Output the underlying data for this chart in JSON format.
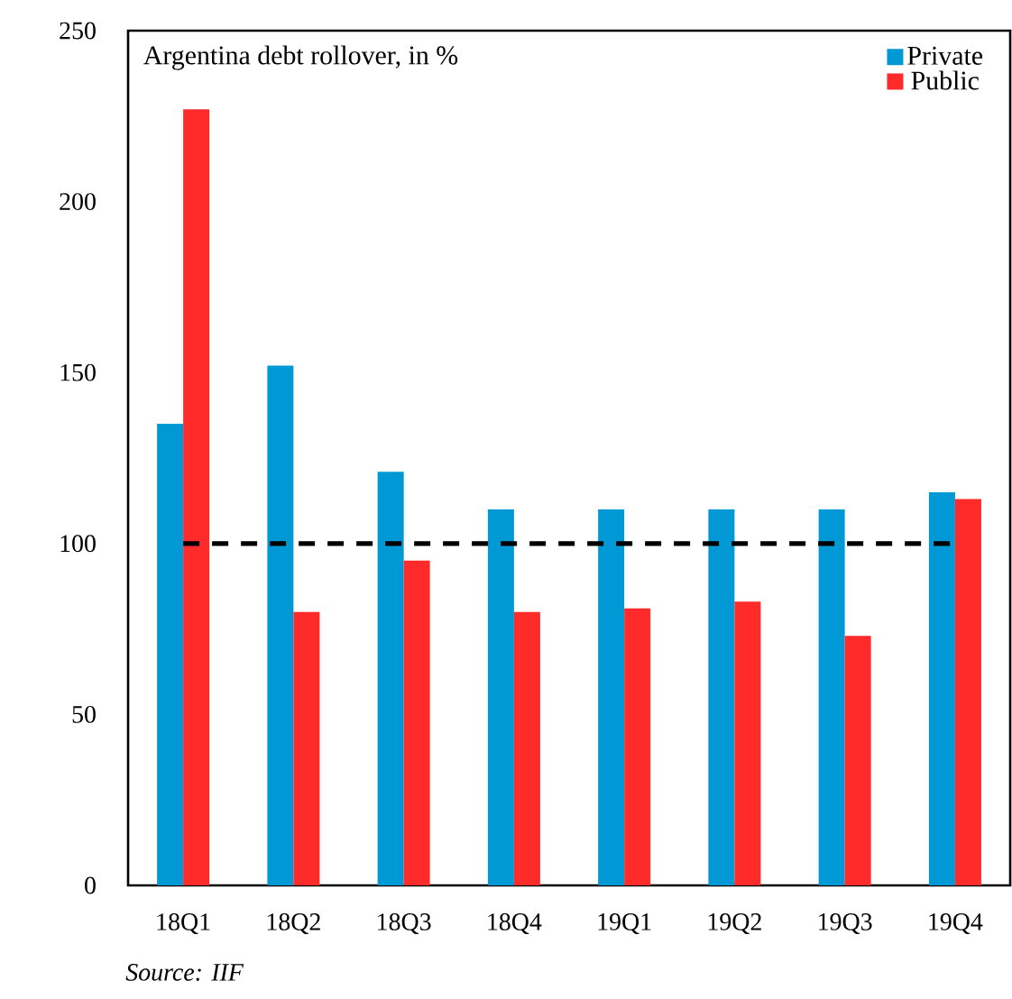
{
  "chart_data": {
    "type": "bar",
    "title": "Argentina debt rollover, in %",
    "categories": [
      "18Q1",
      "18Q2",
      "18Q3",
      "18Q4",
      "19Q1",
      "19Q2",
      "19Q3",
      "19Q4"
    ],
    "series": [
      {
        "name": "Private",
        "color": "#0099d6",
        "values": [
          135,
          152,
          121,
          110,
          110,
          110,
          110,
          115
        ]
      },
      {
        "name": "Public",
        "color": "#ff2a2a",
        "values": [
          227,
          80,
          95,
          80,
          81,
          83,
          73,
          113
        ]
      }
    ],
    "ylim": [
      0,
      250
    ],
    "yticks": [
      0,
      50,
      100,
      150,
      200,
      250
    ],
    "ref_lines": [
      {
        "axis": "y",
        "value": 100,
        "color": "#000000",
        "line_style": "dashed"
      }
    ],
    "legend": "top right",
    "grid": false,
    "annotations": [
      "Source: IIF"
    ]
  }
}
